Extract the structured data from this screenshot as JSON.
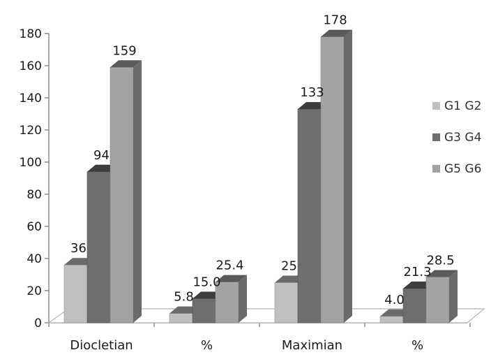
{
  "chart_data": {
    "type": "bar",
    "style": "3d-clustered-column",
    "categories": [
      "Diocletian",
      "%",
      "Maximian",
      "%"
    ],
    "series": [
      {
        "name": "G1 G2",
        "values": [
          36,
          5.8,
          25,
          4.0
        ],
        "labels": [
          "36",
          "5.8",
          "25",
          "4.0"
        ],
        "color": "#c0c0c0"
      },
      {
        "name": "G3 G4",
        "values": [
          94,
          15.0,
          133,
          21.3
        ],
        "labels": [
          "94",
          "15.0",
          "133",
          "21.3"
        ],
        "color": "#6e6e6e"
      },
      {
        "name": "G5 G6",
        "values": [
          159,
          25.4,
          178,
          28.5
        ],
        "labels": [
          "159",
          "25.4",
          "178",
          "28.5"
        ],
        "color": "#a3a3a3"
      }
    ],
    "yticks": [
      "0",
      "20",
      "40",
      "60",
      "80",
      "100",
      "120",
      "140",
      "160",
      "180"
    ],
    "ylim": [
      0,
      180
    ],
    "grid": false,
    "legend": "right"
  }
}
